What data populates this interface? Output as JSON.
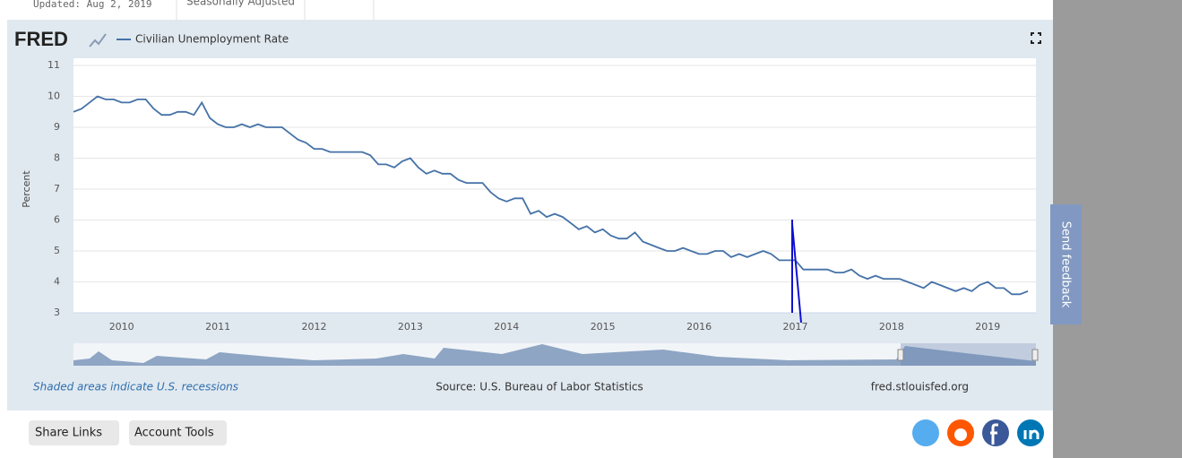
{
  "header": {
    "updated": "Updated: Aug 2, 2019",
    "adjustment": "Seasonally Adjusted"
  },
  "logo": "FRED",
  "chart_data": {
    "type": "line",
    "y_label": "Percent",
    "categories": [
      null,
      null,
      null,
      null,
      null,
      null,
      "2010",
      null,
      null,
      null,
      null,
      null,
      null,
      null,
      null,
      null,
      null,
      null,
      "2011",
      null,
      null,
      null,
      null,
      null,
      null,
      null,
      null,
      null,
      null,
      null,
      "2012",
      null,
      null,
      null,
      null,
      null,
      null,
      null,
      null,
      null,
      null,
      null,
      "2013",
      null,
      null,
      null,
      null,
      null,
      null,
      null,
      null,
      null,
      null,
      null,
      "2014",
      null,
      null,
      null,
      null,
      null,
      null,
      null,
      null,
      null,
      null,
      null,
      "2015",
      null,
      null,
      null,
      null,
      null,
      null,
      null,
      null,
      null,
      null,
      null,
      "2016",
      null,
      null,
      null,
      null,
      null,
      null,
      null,
      null,
      null,
      null,
      null,
      "2017",
      null,
      null,
      null,
      null,
      null,
      null,
      null,
      null,
      null,
      null,
      null,
      "2018",
      null,
      null,
      null,
      null,
      null,
      null,
      null,
      null,
      null,
      null,
      null,
      "2019",
      null,
      null,
      null,
      null,
      null
    ],
    "series": [
      {
        "name": "Civilian Unemployment Rate",
        "color": "#4572a7",
        "values": [
          9.5,
          9.6,
          9.8,
          10.0,
          9.9,
          9.9,
          9.8,
          9.8,
          9.9,
          9.9,
          9.6,
          9.4,
          9.4,
          9.5,
          9.5,
          9.4,
          9.8,
          9.3,
          9.1,
          9.0,
          9.0,
          9.1,
          9.0,
          9.1,
          9.0,
          9.0,
          9.0,
          8.8,
          8.6,
          8.5,
          8.3,
          8.3,
          8.2,
          8.2,
          8.2,
          8.2,
          8.2,
          8.1,
          7.8,
          7.8,
          7.7,
          7.9,
          8.0,
          7.7,
          7.5,
          7.6,
          7.5,
          7.5,
          7.3,
          7.2,
          7.2,
          7.2,
          6.9,
          6.7,
          6.6,
          6.7,
          6.7,
          6.2,
          6.3,
          6.1,
          6.2,
          6.1,
          5.9,
          5.7,
          5.8,
          5.6,
          5.7,
          5.5,
          5.4,
          5.4,
          5.6,
          5.3,
          5.2,
          5.1,
          5.0,
          5.0,
          5.1,
          5.0,
          4.9,
          4.9,
          5.0,
          5.0,
          4.8,
          4.9,
          4.8,
          4.9,
          5.0,
          4.9,
          4.7,
          4.7,
          4.7,
          4.4,
          4.4,
          4.4,
          4.4,
          4.3,
          4.3,
          4.4,
          4.2,
          4.1,
          4.2,
          4.1,
          4.1,
          4.1,
          4.0,
          3.9,
          3.8,
          4.0,
          3.9,
          3.8,
          3.7,
          3.8,
          3.7,
          3.9,
          4.0,
          3.8,
          3.8,
          3.6,
          3.6,
          3.7
        ]
      }
    ],
    "ylim": [
      3,
      11
    ],
    "yticks": [
      3,
      4,
      5,
      6,
      7,
      8,
      9,
      10,
      11
    ],
    "grid": true
  },
  "footer": {
    "recessions": "Shaded areas indicate U.S. recessions",
    "source": "Source: U.S. Bureau of Labor Statistics",
    "site": "fred.stlouisfed.org"
  },
  "buttons": [
    "Share Links",
    "Account Tools"
  ],
  "feedback": "Send feedback"
}
